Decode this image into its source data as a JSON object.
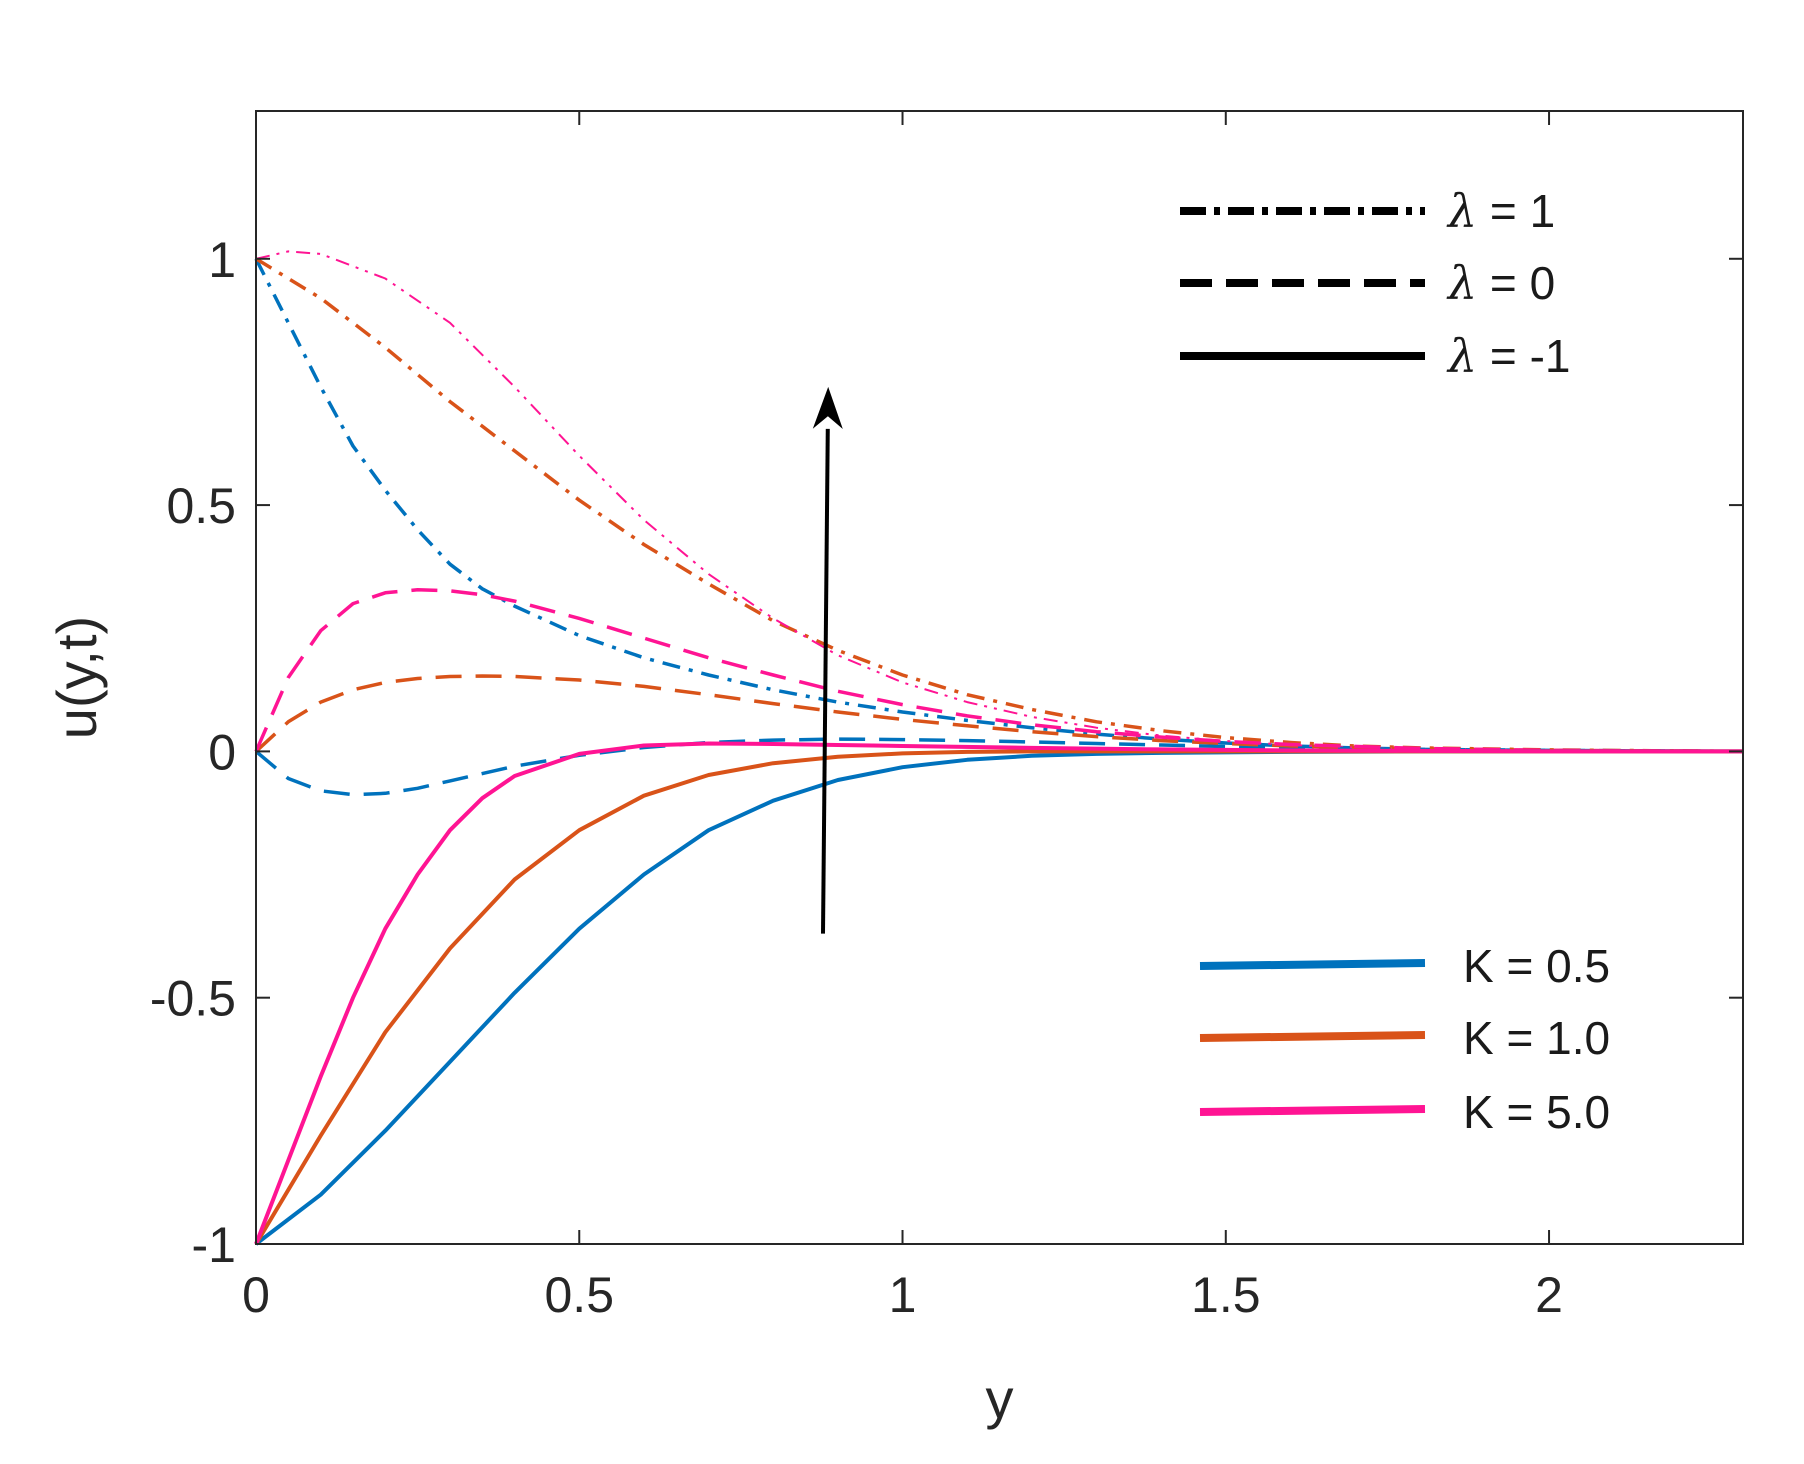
{
  "chart_data": {
    "type": "line",
    "xlabel": "y",
    "ylabel": "u(y,t)",
    "xlim": [
      0,
      2.3
    ],
    "ylim": [
      -1,
      1.3
    ],
    "xticks": [
      0,
      0.5,
      1,
      1.5,
      2
    ],
    "xtick_labels": [
      "0",
      "0.5",
      "1",
      "1.5",
      "2"
    ],
    "yticks": [
      -1,
      -0.5,
      0,
      0.5,
      1
    ],
    "ytick_labels": [
      "-1",
      "-0.5",
      "0",
      "0.5",
      "1"
    ],
    "grid": false,
    "colors": {
      "K0.5": "#0072BD",
      "K1.0": "#D95319",
      "K5.0": "#FF1493",
      "axis": "#262626"
    },
    "series": [
      {
        "K": "0.5",
        "lambda": "1",
        "style": "dashdot",
        "color": "#0072BD",
        "x": [
          0,
          0.05,
          0.1,
          0.15,
          0.2,
          0.25,
          0.3,
          0.35,
          0.4,
          0.5,
          0.6,
          0.7,
          0.8,
          0.9,
          1.0,
          1.1,
          1.2,
          1.3,
          1.4,
          1.5,
          1.6,
          1.7,
          1.8,
          2.0,
          2.3
        ],
        "y": [
          1.0,
          0.87,
          0.74,
          0.62,
          0.53,
          0.45,
          0.38,
          0.33,
          0.295,
          0.235,
          0.19,
          0.155,
          0.125,
          0.1,
          0.08,
          0.063,
          0.048,
          0.035,
          0.025,
          0.017,
          0.011,
          0.007,
          0.004,
          0.002,
          0.0
        ]
      },
      {
        "K": "1.0",
        "lambda": "1",
        "style": "dashdot",
        "color": "#D95319",
        "x": [
          0,
          0.1,
          0.2,
          0.3,
          0.4,
          0.5,
          0.6,
          0.7,
          0.8,
          0.9,
          1.0,
          1.1,
          1.2,
          1.3,
          1.4,
          1.5,
          1.6,
          1.7,
          1.8,
          2.0,
          2.3
        ],
        "y": [
          1.0,
          0.92,
          0.82,
          0.71,
          0.61,
          0.51,
          0.42,
          0.34,
          0.265,
          0.205,
          0.155,
          0.115,
          0.085,
          0.06,
          0.042,
          0.028,
          0.018,
          0.011,
          0.007,
          0.003,
          0.0
        ]
      },
      {
        "K": "5.0",
        "lambda": "1",
        "style": "dashdotthin",
        "color": "#FF1493",
        "x": [
          0,
          0.05,
          0.1,
          0.2,
          0.3,
          0.4,
          0.5,
          0.6,
          0.7,
          0.8,
          0.9,
          1.0,
          1.1,
          1.2,
          1.3,
          1.4,
          1.5,
          1.6,
          1.7,
          1.8,
          2.0,
          2.3
        ],
        "y": [
          1.0,
          1.015,
          1.01,
          0.96,
          0.87,
          0.74,
          0.6,
          0.47,
          0.36,
          0.27,
          0.195,
          0.14,
          0.1,
          0.07,
          0.048,
          0.032,
          0.021,
          0.013,
          0.008,
          0.005,
          0.002,
          0.0
        ]
      },
      {
        "K": "0.5",
        "lambda": "0",
        "style": "dashed",
        "color": "#0072BD",
        "x": [
          0,
          0.05,
          0.1,
          0.15,
          0.2,
          0.25,
          0.3,
          0.35,
          0.4,
          0.5,
          0.6,
          0.7,
          0.8,
          0.9,
          1.0,
          1.1,
          1.2,
          1.3,
          1.4,
          1.5,
          1.6,
          1.8,
          2.0,
          2.3
        ],
        "y": [
          0.0,
          -0.055,
          -0.08,
          -0.088,
          -0.085,
          -0.075,
          -0.06,
          -0.045,
          -0.03,
          -0.008,
          0.008,
          0.018,
          0.023,
          0.025,
          0.024,
          0.022,
          0.019,
          0.016,
          0.013,
          0.01,
          0.007,
          0.004,
          0.002,
          0.0
        ]
      },
      {
        "K": "1.0",
        "lambda": "0",
        "style": "dashed",
        "color": "#D95319",
        "x": [
          0,
          0.05,
          0.1,
          0.15,
          0.2,
          0.25,
          0.3,
          0.35,
          0.4,
          0.5,
          0.6,
          0.7,
          0.8,
          0.9,
          1.0,
          1.1,
          1.2,
          1.3,
          1.4,
          1.5,
          1.6,
          1.8,
          2.0,
          2.3
        ],
        "y": [
          0.0,
          0.06,
          0.1,
          0.125,
          0.14,
          0.148,
          0.152,
          0.153,
          0.152,
          0.145,
          0.132,
          0.115,
          0.097,
          0.08,
          0.065,
          0.052,
          0.04,
          0.03,
          0.022,
          0.016,
          0.011,
          0.005,
          0.002,
          0.0
        ]
      },
      {
        "K": "5.0",
        "lambda": "0",
        "style": "dashed",
        "color": "#FF1493",
        "x": [
          0,
          0.05,
          0.1,
          0.15,
          0.2,
          0.25,
          0.3,
          0.35,
          0.4,
          0.5,
          0.6,
          0.7,
          0.8,
          0.9,
          1.0,
          1.1,
          1.2,
          1.3,
          1.4,
          1.5,
          1.6,
          1.8,
          2.0,
          2.3
        ],
        "y": [
          0.0,
          0.15,
          0.245,
          0.3,
          0.322,
          0.328,
          0.326,
          0.318,
          0.305,
          0.27,
          0.23,
          0.19,
          0.155,
          0.122,
          0.095,
          0.072,
          0.054,
          0.04,
          0.029,
          0.02,
          0.014,
          0.006,
          0.002,
          0.0
        ]
      },
      {
        "K": "0.5",
        "lambda": "-1",
        "style": "solid",
        "color": "#0072BD",
        "x": [
          0,
          0.1,
          0.2,
          0.3,
          0.4,
          0.5,
          0.6,
          0.7,
          0.8,
          0.9,
          1.0,
          1.1,
          1.2,
          1.3,
          1.4,
          1.6,
          1.8,
          2.0,
          2.3
        ],
        "y": [
          -1.0,
          -0.9,
          -0.77,
          -0.63,
          -0.49,
          -0.36,
          -0.25,
          -0.16,
          -0.1,
          -0.058,
          -0.032,
          -0.017,
          -0.009,
          -0.005,
          -0.003,
          -0.001,
          0.0,
          0.0,
          0.0
        ]
      },
      {
        "K": "1.0",
        "lambda": "-1",
        "style": "solid",
        "color": "#D95319",
        "x": [
          0,
          0.1,
          0.2,
          0.3,
          0.4,
          0.5,
          0.6,
          0.7,
          0.8,
          0.9,
          1.0,
          1.1,
          1.2,
          1.4,
          1.6,
          1.8,
          2.0,
          2.3
        ],
        "y": [
          -1.0,
          -0.78,
          -0.57,
          -0.4,
          -0.26,
          -0.16,
          -0.09,
          -0.048,
          -0.024,
          -0.011,
          -0.004,
          -0.001,
          0.0,
          0.0,
          0.0,
          0.0,
          0.0,
          0.0
        ]
      },
      {
        "K": "5.0",
        "lambda": "-1",
        "style": "solid",
        "color": "#FF1493",
        "x": [
          0,
          0.05,
          0.1,
          0.15,
          0.2,
          0.25,
          0.3,
          0.35,
          0.4,
          0.5,
          0.6,
          0.7,
          0.8,
          0.9,
          1.0,
          1.2,
          1.4,
          1.6,
          1.8,
          2.0,
          2.3
        ],
        "y": [
          -1.0,
          -0.83,
          -0.66,
          -0.5,
          -0.36,
          -0.25,
          -0.16,
          -0.095,
          -0.05,
          -0.005,
          0.012,
          0.016,
          0.015,
          0.013,
          0.011,
          0.007,
          0.004,
          0.002,
          0.001,
          0.0,
          0.0
        ]
      }
    ],
    "arrow": {
      "x_start": 0.877,
      "y_start": -0.37,
      "x_end": 0.885,
      "y_end": 0.74
    },
    "legend_lambda": {
      "position": "top-right",
      "entries": [
        {
          "symbol": "λ",
          "label": " = 1",
          "style": "dashdot"
        },
        {
          "symbol": "λ",
          "label": " = 0",
          "style": "dashed"
        },
        {
          "symbol": "λ",
          "label": " = -1",
          "style": "solid"
        }
      ]
    },
    "legend_K": {
      "position": "bottom-right",
      "entries": [
        {
          "label": "K = 0.5",
          "color": "#0072BD"
        },
        {
          "label": "K = 1.0",
          "color": "#D95319"
        },
        {
          "label": "K = 5.0",
          "color": "#FF1493"
        }
      ]
    }
  }
}
